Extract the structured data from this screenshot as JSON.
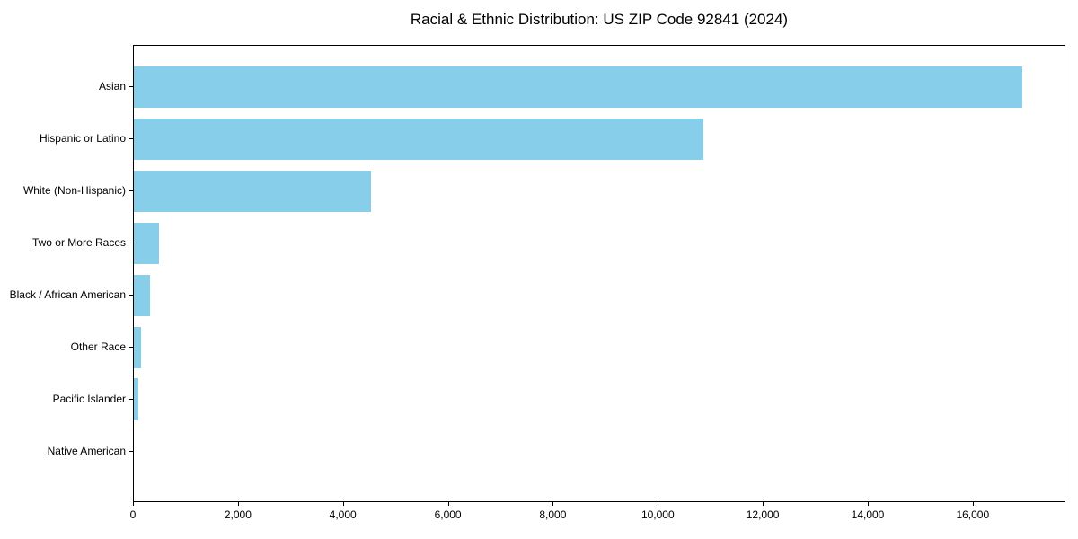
{
  "chart_data": {
    "type": "bar",
    "orientation": "horizontal",
    "title": "Racial & Ethnic Distribution: US ZIP Code 92841 (2024)",
    "categories": [
      "Asian",
      "Hispanic or Latino",
      "White (Non-Hispanic)",
      "Two or More Races",
      "Black / African American",
      "Other Race",
      "Pacific Islander",
      "Native American"
    ],
    "values": [
      16920,
      10850,
      4520,
      480,
      300,
      130,
      85,
      0
    ],
    "x_ticks": [
      0,
      2000,
      4000,
      6000,
      8000,
      10000,
      12000,
      14000,
      16000
    ],
    "x_tick_labels": [
      "0",
      "2,000",
      "4,000",
      "6,000",
      "8,000",
      "10,000",
      "12,000",
      "14,000",
      "16,000"
    ],
    "xlim": [
      0,
      17766
    ],
    "xlabel": "",
    "ylabel": "",
    "grid": false,
    "legend": null,
    "bar_color": "#87CEEB",
    "background_color": "#ffffff",
    "text_color": "#000000",
    "axis_color": "#000000"
  }
}
